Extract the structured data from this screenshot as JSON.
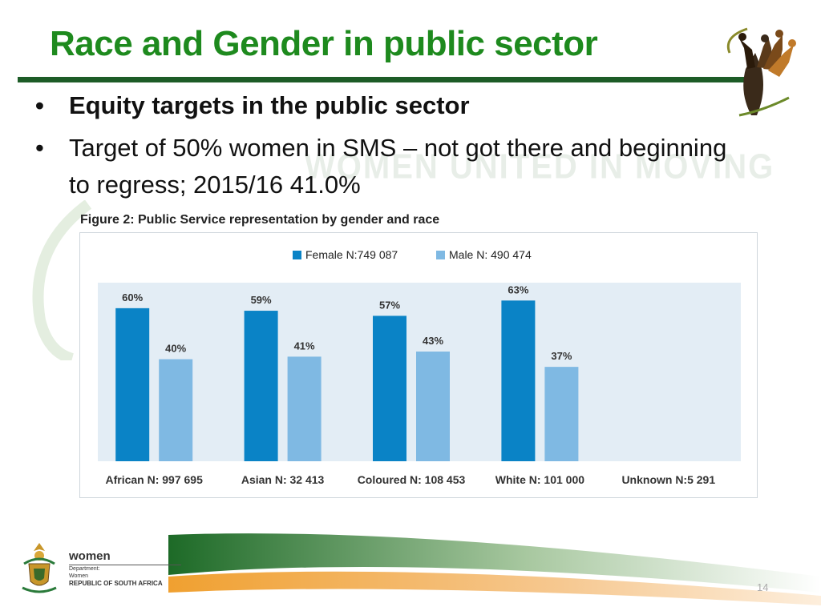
{
  "slide": {
    "title": "Race and Gender in public sector",
    "bullets": [
      "Equity targets in the public sector",
      "Target of 50% women in SMS – not got there and beginning to regress; 2015/16 41.0%"
    ],
    "watermark": "WOMEN UNITED IN MOVING",
    "figure_caption": "Figure 2: Public Service representation by gender and race",
    "page_number": "14"
  },
  "footer": {
    "dept_name": "women",
    "dept_line1": "Department:",
    "dept_line2": "Women",
    "dept_line3": "REPUBLIC OF SOUTH AFRICA"
  },
  "colors": {
    "title_green": "#1e8a1e",
    "rule_green": "#1d5c27",
    "female_bar": "#0a83c6",
    "male_bar": "#7fb9e3",
    "plot_bg": "#e3edf5"
  },
  "icons": [
    "women-dancing-logo",
    "coat-of-arms-icon"
  ],
  "chart_data": {
    "type": "bar",
    "title": "Figure 2: Public Service representation by gender and race",
    "categories": [
      "African N: 997 695",
      "Asian N: 32 413",
      "Coloured N: 108 453",
      "White N: 101 000",
      "Unknown N:5 291"
    ],
    "series": [
      {
        "name": "Female N:749 087",
        "values": [
          60,
          59,
          57,
          63,
          null
        ],
        "labels": [
          "60%",
          "59%",
          "57%",
          "63%",
          ""
        ]
      },
      {
        "name": "Male N: 490 474",
        "values": [
          40,
          41,
          43,
          37,
          null
        ],
        "labels": [
          "40%",
          "41%",
          "43%",
          "37%",
          ""
        ]
      }
    ],
    "ylim": [
      0,
      70
    ],
    "legend_position": "top-center",
    "grid": false
  }
}
